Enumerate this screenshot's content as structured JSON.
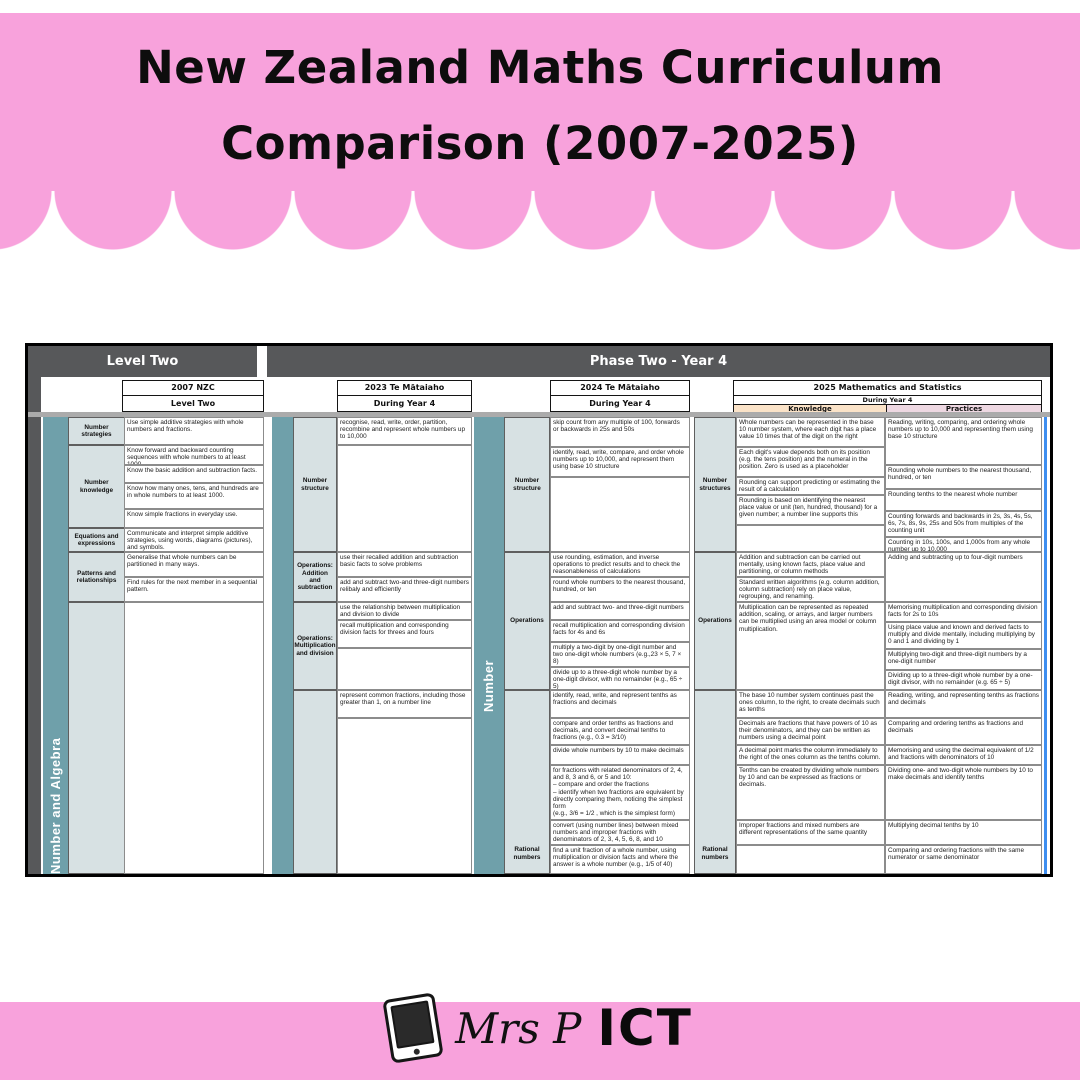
{
  "poster": {
    "title_line1": "New Zealand Maths Curriculum",
    "title_line2": "Comparison (2007-2025)",
    "brand": {
      "name_script": "Mrs P",
      "name_bold": "ICT"
    },
    "colors": {
      "pink": "#F8A2DC",
      "banner_gray": "#57585A",
      "teal": "#6FA0AA",
      "label_bg": "#D7E1E3",
      "knowledge_bg": "#FBE3C8",
      "practices_bg": "#EED8E2",
      "blue_line": "#3E8EF0"
    }
  },
  "table": {
    "banner_left": "Level Two",
    "banner_right": "Phase Two - Year 4",
    "strand_vertical_left": "Number and Algebra",
    "strand_vertical_2024": "Number",
    "col2007": {
      "year": "2007 NZC",
      "period": "Level Two",
      "labels": [
        "Number strategies",
        "Number knowledge",
        "Equations and expressions",
        "Patterns and relationships",
        ""
      ],
      "cells": [
        "Use simple additive strategies with whole numbers and fractions.",
        "Know forward and backward counting sequences with whole numbers to at least 1000.",
        "Know the basic addition and subtraction facts.",
        "Know how many ones, tens, and hundreds are in whole numbers to at least 1000.",
        "Know simple fractions in everyday use.",
        "Communicate and interpret simple additive strategies, using words, diagrams (pictures), and symbols.",
        "Generalise that whole numbers can be partitioned in many ways.",
        "Find rules for the next member in a sequential pattern.",
        ""
      ]
    },
    "col2023": {
      "year": "2023 Te Mātaiaho",
      "period": "During Year 4",
      "labels": [
        "Number structure",
        "Operations: Addition and subtraction",
        "Operations: Multiplication and division",
        ""
      ],
      "cells": [
        "recognise, read, write, order, partition, recombine and represent whole numbers up to 10,000",
        "",
        "use their recalled addition and subtraction basic facts to solve problems",
        "add and subtract two-and three-digit numbers relibaly and efficiently",
        "use the relationship between multiplication and division to divide",
        "recall multiplication and corresponding division facts for threes and fours",
        "",
        "represent common fractions, including those greater than 1, on a number line",
        ""
      ]
    },
    "col2024": {
      "year": "2024 Te Mātaiaho",
      "period": "During Year 4",
      "labels": [
        "Number structure",
        "Operations",
        "Rational numbers"
      ],
      "cells": [
        "skip count from any multiple of 100, forwards or backwards in 25s and 50s",
        "identify, read, write, compare, and order whole numbers up to 10,000, and represent them using base 10 structure",
        "",
        "use rounding, estimation, and inverse operations to predict results and to check the reasonableness of calculations",
        "round whole numbers to the nearest thousand, hundred, or ten",
        "add and subtract two- and three-digit numbers",
        "recall multiplication and corresponding division facts for 4s and 6s",
        "multiply a two-digit by one-digit number and two one-digit whole numbers (e.g.,23 × 5, 7 × 8)",
        "divide up to a three-digit whole number by a one-digit divisor, with no remainder (e.g., 65 ÷ 5)",
        "identify, read, write, and represent tenths as fractions and decimals",
        "compare and order tenths as fractions and decimals, and convert decimal tenths to fractions (e.g., 0.3 = 3/10)",
        "divide whole numbers by 10 to make decimals",
        "for fractions with related denominators of 2, 4, and 8, 3 and 6, or 5 and 10:\n– compare and order the fractions\n– identify when two fractions are equivalent by directly comparing them, noticing the simplest form\n(e.g., 3/6 = 1/2 , which is the simplest form)",
        "convert (using number lines) between mixed numbers and improper fractions with denominators of 2, 3, 4, 5, 6, 8, and 10",
        "find a unit fraction of a whole number, using multiplication or division facts and where the answer is a whole number (e.g., 1/5 of 40)"
      ]
    },
    "col2025": {
      "year": "2025 Mathematics and Statistics",
      "period": "During Year 4",
      "sub_knowledge": "Knowledge",
      "sub_practices": "Practices",
      "labels": [
        "Number structures",
        "Operations",
        "Rational numbers"
      ],
      "knowledge_cells": [
        "Whole numbers can be represented in the base 10 number system, where each digit has a place value 10 times that of the digit on the right",
        "Each digit's value depends both on its position (e.g. the tens position) and the numeral in the position. Zero is used as a placeholder",
        "Rounding can support predicting or estimating the result of a calculation",
        "Rounding is based on identifying the nearest place value or unit (ten, hundred, thousand) for a given number; a number line supports this",
        "",
        "Addition and subtraction can be carried out mentally, using known facts, place value and partitioning, or column methods",
        "Standard written algorithms (e.g. column addition, column subtraction) rely on place value, regrouping, and renaming.",
        "Multiplication can be represented as repeated addition, scaling, or arrays, and larger numbers can be multiplied using an area model or column multiplication.",
        "The base 10 number system continues past the ones column, to the right, to create decimals such as tenths",
        "Decimals are fractions that have powers of 10 as their denominators, and they can be written as numbers using a decimal point",
        "A decimal point marks the column immediately to the right of the ones column as the tenths column.",
        "Tenths can be created by dividing whole numbers by 10 and can be expressed as fractions or decimals.",
        "Improper fractions and mixed numbers are different representations of the same quantity",
        ""
      ],
      "practices_cells": [
        "Reading, writing, comparing, and ordering whole numbers up to 10,000 and representing them using base 10 structure",
        "Rounding whole numbers to the nearest thousand, hundred, or ten",
        "Rounding tenths to the nearest whole number",
        "Counting forwards and backwards in 2s, 3s, 4s, 5s, 6s, 7s, 8s, 9s, 25s and 50s from multiples of the counting unit",
        "Counting in 10s, 100s, and 1,000s from any whole number up to 10,000",
        "Adding and subtracting up to four-digit numbers",
        "Memorising multiplication and corresponding division facts for 2s to 10s",
        "Using place value and known and derived facts to multiply and divide mentally, including multiplying by 0 and 1 and dividing by 1",
        "Multiplying two-digit and three-digit numbers by a one-digit number",
        "Dividing up to a three-digit whole number by a one-digit divisor, with no remainder (e.g. 65 ÷ 5)",
        "Reading, writing, and representing tenths as fractions and decimals",
        "Comparing and ordering tenths as fractions and decimals",
        "Memorising and using the decimal equivalent of 1/2 and fractions with denominators of 10",
        "Dividing one- and two-digit whole numbers by 10 to make decimals and identify tenths",
        "Multiplying decimal tenths by 10",
        "Comparing and ordering fractions with the same numerator or same denominator"
      ]
    }
  }
}
